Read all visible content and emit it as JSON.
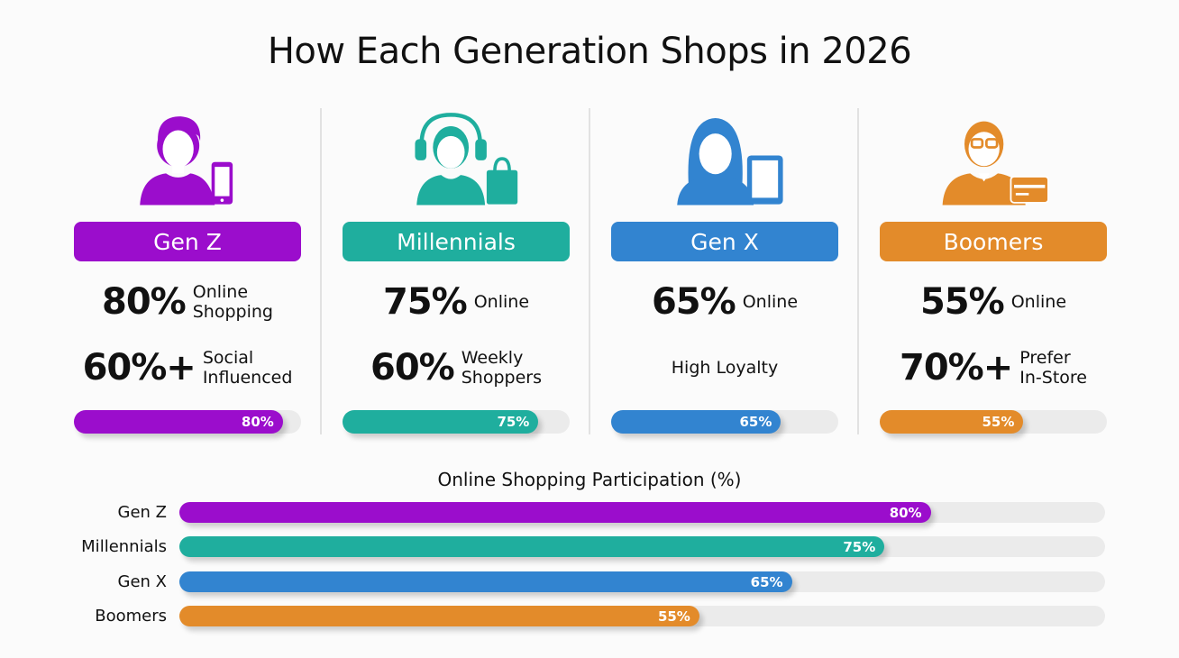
{
  "title": "How Each Generation Shops in 2026",
  "generations": [
    {
      "name": "Gen Z",
      "color": "#9b0dcc",
      "icon": "person-with-phone-icon",
      "stat1_value": "80%",
      "stat1_desc": [
        "Online",
        "Shopping"
      ],
      "stat2_value": "60%+",
      "stat2_desc": [
        "Social",
        "Influenced"
      ],
      "progress": 80,
      "progress_label": "80%"
    },
    {
      "name": "Millennials",
      "color": "#1fae9e",
      "icon": "person-with-headphones-and-bag-icon",
      "stat1_value": "75%",
      "stat1_desc": [
        "Online"
      ],
      "stat2_value": "60%",
      "stat2_desc": [
        "Weekly",
        "Shoppers"
      ],
      "progress": 75,
      "progress_label": "75%"
    },
    {
      "name": "Gen X",
      "color": "#3284d0",
      "icon": "woman-with-tablet-icon",
      "stat1_value": "65%",
      "stat1_desc": [
        "Online"
      ],
      "stat2_value": "",
      "stat2_desc": [
        "High Loyalty"
      ],
      "progress": 65,
      "progress_label": "65%"
    },
    {
      "name": "Boomers",
      "color": "#e38b2a",
      "icon": "man-with-glasses-and-card-icon",
      "stat1_value": "55%",
      "stat1_desc": [
        "Online"
      ],
      "stat2_value": "70%+",
      "stat2_desc": [
        "Prefer",
        "In-Store"
      ],
      "progress": 55,
      "progress_label": "55%"
    }
  ],
  "chart_data": {
    "type": "bar",
    "title": "Online Shopping Participation (%)",
    "orientation": "horizontal",
    "categories": [
      "Gen Z",
      "Millennials",
      "Gen X",
      "Boomers"
    ],
    "values": [
      80,
      75,
      65,
      55
    ],
    "value_labels": [
      "80%",
      "75%",
      "65%",
      "55%"
    ],
    "colors": [
      "#9b0dcc",
      "#1fae9e",
      "#3284d0",
      "#e38b2a"
    ],
    "xlim": [
      0,
      100
    ],
    "grid": false
  }
}
